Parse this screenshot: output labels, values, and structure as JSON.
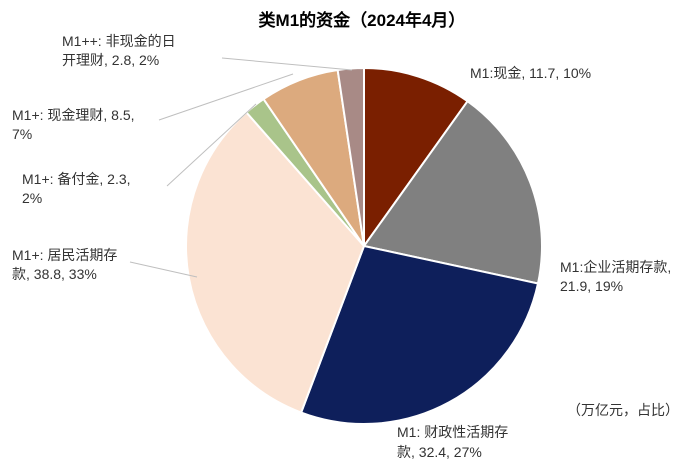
{
  "chart_data": {
    "type": "pie",
    "title": "类M1的资金（2024年4月）",
    "unit_note": "（万亿元，占比）",
    "slices": [
      {
        "name": "M1:现金",
        "value": 11.7,
        "percent": 10,
        "color": "#7a1f00",
        "label_lines": [
          "M1:现金, 11.7, 10%"
        ]
      },
      {
        "name": "M1:企业活期存款",
        "value": 21.9,
        "percent": 19,
        "color": "#808080",
        "label_lines": [
          "M1:企业活期存款,",
          "21.9, 19%"
        ]
      },
      {
        "name": "M1: 财政性活期存款",
        "value": 32.4,
        "percent": 27,
        "color": "#0e1f5b",
        "label_lines": [
          "M1: 财政性活期存",
          "款, 32.4, 27%"
        ]
      },
      {
        "name": "M1+: 居民活期存款",
        "value": 38.8,
        "percent": 33,
        "color": "#fbe3d3",
        "label_lines": [
          "M1+: 居民活期存",
          "款, 38.8, 33%"
        ]
      },
      {
        "name": "M1+: 备付金",
        "value": 2.3,
        "percent": 2,
        "color": "#a9c48a",
        "label_lines": [
          "M1+: 备付金, 2.3,",
          "2%"
        ]
      },
      {
        "name": "M1+: 现金理财",
        "value": 8.5,
        "percent": 7,
        "color": "#dcaa7e",
        "label_lines": [
          "M1+: 现金理财, 8.5,",
          "7%"
        ]
      },
      {
        "name": "M1++: 非现金的日开理财",
        "value": 2.8,
        "percent": 2,
        "color": "#a88a86",
        "label_lines": [
          "M1++: 非现金的日",
          "开理财, 2.8, 2%"
        ]
      }
    ]
  }
}
